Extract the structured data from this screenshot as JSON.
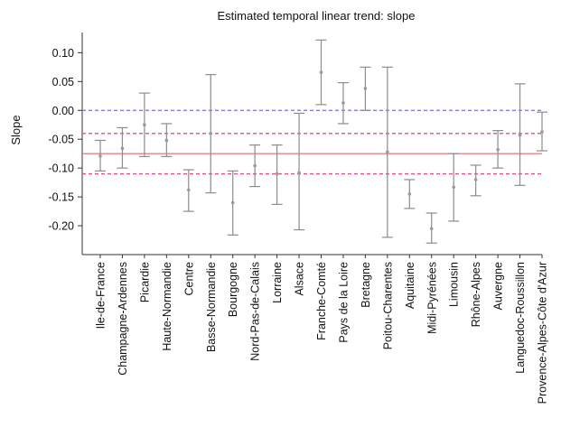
{
  "chart_data": {
    "type": "errorbar",
    "title": "Estimated temporal linear trend: slope",
    "xlabel": "",
    "ylabel": "Slope",
    "ylim": [
      -0.25,
      0.135
    ],
    "yticks": [
      "0.10",
      "0.05",
      "0.00",
      "-0.05",
      "-0.10",
      "-0.15",
      "-0.20"
    ],
    "yticks_values": [
      0.1,
      0.05,
      0.0,
      -0.05,
      -0.1,
      -0.15,
      -0.2
    ],
    "grid": false,
    "reference_lines": [
      {
        "value": 0.0,
        "color": "#7b6fd6",
        "style": "dashed"
      },
      {
        "value": -0.075,
        "color": "#e06a6a",
        "style": "solid"
      },
      {
        "value": -0.04,
        "color": "#e0507a",
        "style": "dashed"
      },
      {
        "value": -0.11,
        "color": "#e0507a",
        "style": "dashed"
      }
    ],
    "categories": [
      "Ile-de-France",
      "Champagne-Ardennes",
      "Picardie",
      "Haute-Normandie",
      "Centre",
      "Basse-Normandie",
      "Bourgogne",
      "Nord-Pas-de-Calais",
      "Lorraine",
      "Alsace",
      "Franche-Comté",
      "Pays de la Loire",
      "Bretagne",
      "Poitou-Charentes",
      "Aquitaine",
      "Midi-Pyrénées",
      "Limousin",
      "Rhône-Alpes",
      "Auvergne",
      "Languedoc-Roussillon",
      "Provence-Alpes-Côte d'Azur"
    ],
    "series": [
      {
        "estimate": [
          -0.079,
          -0.066,
          -0.025,
          -0.052,
          -0.138,
          -0.04,
          -0.16,
          -0.096,
          -0.11,
          -0.108,
          0.066,
          0.013,
          0.038,
          -0.072,
          -0.145,
          -0.205,
          -0.133,
          -0.12,
          -0.068,
          -0.043,
          -0.037
        ],
        "lower": [
          -0.105,
          -0.1,
          -0.08,
          -0.08,
          -0.175,
          -0.143,
          -0.216,
          -0.132,
          -0.163,
          -0.207,
          0.01,
          -0.023,
          0.0,
          -0.22,
          -0.17,
          -0.23,
          -0.192,
          -0.148,
          -0.1,
          -0.13,
          -0.07
        ],
        "upper": [
          -0.052,
          -0.03,
          0.03,
          -0.023,
          -0.103,
          0.062,
          -0.105,
          -0.06,
          -0.06,
          -0.005,
          0.122,
          0.048,
          0.075,
          0.075,
          -0.12,
          -0.178,
          -0.075,
          -0.095,
          -0.035,
          0.046,
          -0.003
        ]
      }
    ]
  }
}
